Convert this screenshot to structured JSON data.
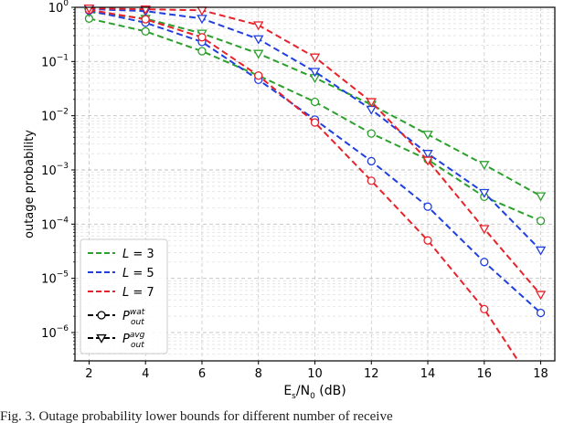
{
  "chart_data": {
    "type": "line",
    "xlabel": "E",
    "xlabel_sub1": "s",
    "xlabel_mid": "/N",
    "xlabel_sub2": "0",
    "xlabel_tail": " (dB)",
    "ylabel": "outage probability",
    "x_ticks": [
      2,
      4,
      6,
      8,
      10,
      12,
      14,
      16,
      18
    ],
    "xlim": [
      1.5,
      18.5
    ],
    "y_scale": "log",
    "ylim": [
      3e-07,
      1
    ],
    "y_tick_exponents": [
      0,
      -1,
      -2,
      -3,
      -4,
      -5,
      -6
    ],
    "grid": true,
    "legend_position": "lower-left",
    "legend": [
      {
        "text_prefix": "L",
        "text_suffix": " = 3",
        "color": "#2ca02c",
        "style": "dashed"
      },
      {
        "text_prefix": "L",
        "text_suffix": " = 5",
        "color": "#1f3fe0",
        "style": "dashed"
      },
      {
        "text_prefix": "L",
        "text_suffix": " = 7",
        "color": "#e8222a",
        "style": "dashed"
      },
      {
        "text_prefix": "P",
        "sup": "wat",
        "sub": "out",
        "color": "#000000",
        "style": "dashed",
        "marker": "circle"
      },
      {
        "text_prefix": "P",
        "sup": "avg",
        "sub": "out",
        "color": "#000000",
        "style": "dashed",
        "marker": "triangle-down"
      }
    ],
    "series": [
      {
        "L": 3,
        "bound": "wat",
        "color": "#2ca02c",
        "marker": "circle",
        "x": [
          2,
          4,
          6,
          8,
          10,
          12,
          14,
          16,
          18
        ],
        "y": [
          0.62,
          0.36,
          0.155,
          0.055,
          0.018,
          0.0047,
          0.00155,
          0.00032,
          0.000115
        ]
      },
      {
        "L": 3,
        "bound": "avg",
        "color": "#2ca02c",
        "marker": "triangle-down",
        "x": [
          2,
          4,
          6,
          8,
          10,
          12,
          14,
          16,
          18
        ],
        "y": [
          0.82,
          0.62,
          0.33,
          0.14,
          0.05,
          0.016,
          0.0045,
          0.00125,
          0.00033
        ]
      },
      {
        "L": 5,
        "bound": "wat",
        "color": "#1f3fe0",
        "marker": "circle",
        "x": [
          2,
          4,
          6,
          8,
          10,
          12,
          14,
          16,
          18
        ],
        "y": [
          0.87,
          0.52,
          0.23,
          0.046,
          0.0085,
          0.00145,
          0.00021,
          2e-05,
          2.3e-06
        ]
      },
      {
        "L": 5,
        "bound": "avg",
        "color": "#1f3fe0",
        "marker": "triangle-down",
        "x": [
          2,
          4,
          6,
          8,
          10,
          12,
          14,
          16,
          18
        ],
        "y": [
          0.93,
          0.85,
          0.62,
          0.26,
          0.065,
          0.013,
          0.002,
          0.00038,
          3.3e-05
        ]
      },
      {
        "L": 7,
        "bound": "wat",
        "color": "#e8222a",
        "marker": "circle",
        "x": [
          2,
          4,
          6,
          8,
          10,
          12,
          14,
          16,
          17.2
        ],
        "y": [
          0.9,
          0.6,
          0.28,
          0.055,
          0.0075,
          0.00063,
          5e-05,
          2.7e-06,
          3e-07
        ],
        "marker_count": 8
      },
      {
        "L": 7,
        "bound": "avg",
        "color": "#e8222a",
        "marker": "triangle-down",
        "x": [
          2,
          4,
          6,
          8,
          10,
          12,
          14,
          16,
          18
        ],
        "y": [
          0.96,
          0.92,
          0.88,
          0.47,
          0.12,
          0.018,
          0.0015,
          8.2e-05,
          5e-06
        ]
      }
    ]
  },
  "caption": "Fig. 3.  Outage probability lower bounds for different number of receive"
}
